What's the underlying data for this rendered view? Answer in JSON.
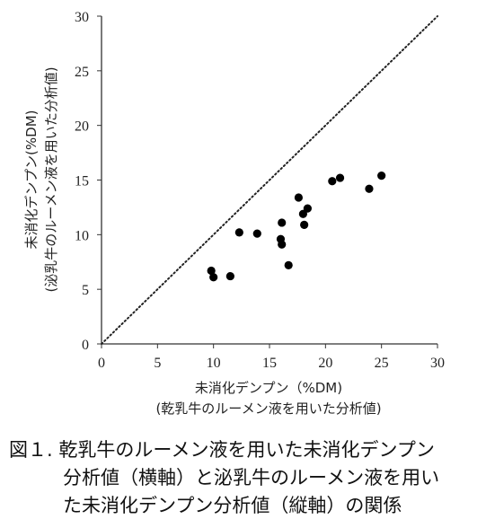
{
  "chart_data": {
    "type": "scatter",
    "xlabel": "未消化デンプン（%DM)",
    "xlabel_sub": "(乾乳牛のルーメン液を用いた分析値)",
    "ylabel": "未消化デンプン(%DM)",
    "ylabel_sub": "(泌乳牛のルーメン液を用いた分析値)",
    "xlim": [
      0,
      30
    ],
    "ylim": [
      0,
      30
    ],
    "xticks": [
      "0",
      "5",
      "10",
      "15",
      "20",
      "25",
      "30"
    ],
    "yticks": [
      "0",
      "5",
      "10",
      "15",
      "20",
      "25",
      "30"
    ],
    "reference_line": "y = x (dotted)",
    "grid": false,
    "points": [
      {
        "x": 9.8,
        "y": 6.7
      },
      {
        "x": 10.0,
        "y": 6.1
      },
      {
        "x": 11.5,
        "y": 6.2
      },
      {
        "x": 12.3,
        "y": 10.2
      },
      {
        "x": 13.9,
        "y": 10.1
      },
      {
        "x": 16.0,
        "y": 9.6
      },
      {
        "x": 16.1,
        "y": 9.1
      },
      {
        "x": 16.1,
        "y": 11.1
      },
      {
        "x": 16.7,
        "y": 7.2
      },
      {
        "x": 17.6,
        "y": 13.4
      },
      {
        "x": 18.0,
        "y": 11.9
      },
      {
        "x": 18.1,
        "y": 10.9
      },
      {
        "x": 18.4,
        "y": 12.4
      },
      {
        "x": 20.6,
        "y": 14.9
      },
      {
        "x": 21.3,
        "y": 15.2
      },
      {
        "x": 23.9,
        "y": 14.2
      },
      {
        "x": 25.0,
        "y": 15.4
      }
    ]
  },
  "caption": {
    "line1": "図１. 乾乳牛のルーメン液を用いた未消化デンプン",
    "line2": "分析値（横軸）と泌乳牛のルーメン液を用い",
    "line3": "た未消化デンプン分析値（縦軸）の関係"
  },
  "colors": {
    "marker": "#000000",
    "axis": "#333333",
    "reference_line": "#222222"
  }
}
